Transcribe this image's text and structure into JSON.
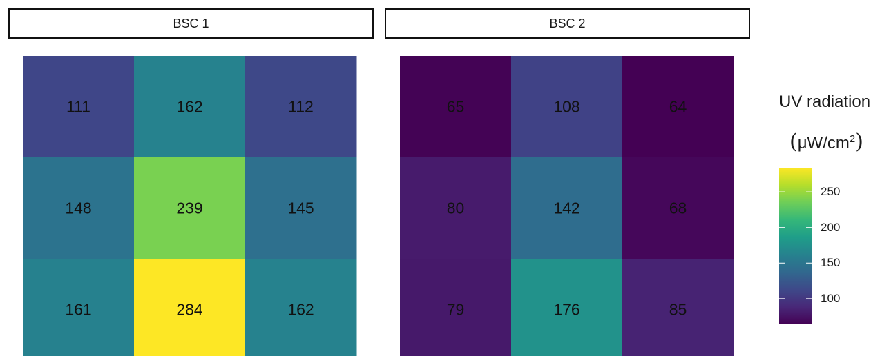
{
  "chart_data": {
    "type": "heatmap",
    "panels": [
      {
        "name": "BSC 1",
        "values": [
          [
            111,
            162,
            112
          ],
          [
            148,
            239,
            145
          ],
          [
            161,
            284,
            162
          ]
        ]
      },
      {
        "name": "BSC 2",
        "values": [
          [
            65,
            108,
            64
          ],
          [
            80,
            142,
            68
          ],
          [
            79,
            176,
            85
          ]
        ]
      }
    ],
    "legend": {
      "title": "UV radiation",
      "unit_prefix": "μW/cm",
      "unit_exponent": "2",
      "breaks": [
        100,
        150,
        200,
        250
      ],
      "range": [
        64,
        284
      ],
      "palette": "viridis",
      "placement": "right"
    }
  }
}
